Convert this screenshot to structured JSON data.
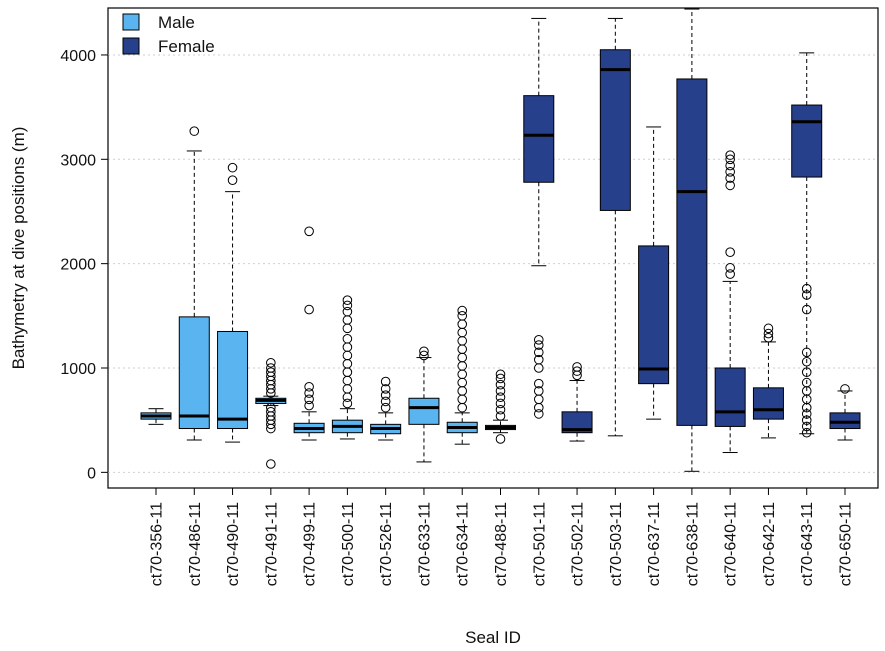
{
  "chart_data": {
    "type": "boxplot",
    "title": "",
    "xlabel": "Seal ID",
    "ylabel": "Bathymetry at dive positions (m)",
    "ylim": [
      -150,
      4450
    ],
    "yticks": [
      0,
      1000,
      2000,
      3000,
      4000
    ],
    "grid": "horizontal dotted",
    "legend_position": "top-left",
    "legend": [
      {
        "name": "Male",
        "color": "#5ab4f0"
      },
      {
        "name": "Female",
        "color": "#27408b"
      }
    ],
    "series": [
      {
        "name": "ct70-356-11",
        "sex": "Male",
        "whisker_low": 460,
        "q1": 510,
        "median": 540,
        "q3": 570,
        "whisker_high": 610,
        "outliers": []
      },
      {
        "name": "ct70-486-11",
        "sex": "Male",
        "whisker_low": 310,
        "q1": 420,
        "median": 540,
        "q3": 1490,
        "whisker_high": 3080,
        "outliers": [
          3270
        ]
      },
      {
        "name": "ct70-490-11",
        "sex": "Male",
        "whisker_low": 290,
        "q1": 420,
        "median": 510,
        "q3": 1350,
        "whisker_high": 2690,
        "outliers": [
          2800,
          2920
        ]
      },
      {
        "name": "ct70-491-11",
        "sex": "Male",
        "whisker_low": 640,
        "q1": 660,
        "median": 690,
        "q3": 710,
        "whisker_high": 730,
        "outliers": [
          80,
          420,
          460,
          500,
          540,
          580,
          620,
          760,
          800,
          840,
          880,
          920,
          960,
          1000,
          1050
        ]
      },
      {
        "name": "ct70-499-11",
        "sex": "Male",
        "whisker_low": 310,
        "q1": 380,
        "median": 420,
        "q3": 470,
        "whisker_high": 580,
        "outliers": [
          640,
          700,
          760,
          820,
          1560,
          2310
        ]
      },
      {
        "name": "ct70-500-11",
        "sex": "Male",
        "whisker_low": 320,
        "q1": 380,
        "median": 440,
        "q3": 500,
        "whisker_high": 610,
        "outliers": [
          660,
          720,
          800,
          880,
          960,
          1040,
          1120,
          1200,
          1280,
          1380,
          1460,
          1540,
          1600,
          1650
        ]
      },
      {
        "name": "ct70-526-11",
        "sex": "Male",
        "whisker_low": 310,
        "q1": 370,
        "median": 420,
        "q3": 460,
        "whisker_high": 570,
        "outliers": [
          620,
          680,
          740,
          800,
          870
        ]
      },
      {
        "name": "ct70-633-11",
        "sex": "Male",
        "whisker_low": 100,
        "q1": 460,
        "median": 620,
        "q3": 710,
        "whisker_high": 1100,
        "outliers": [
          1120,
          1160
        ]
      },
      {
        "name": "ct70-634-11",
        "sex": "Male",
        "whisker_low": 270,
        "q1": 380,
        "median": 430,
        "q3": 480,
        "whisker_high": 570,
        "outliers": [
          620,
          700,
          780,
          860,
          940,
          1020,
          1100,
          1180,
          1260,
          1340,
          1420,
          1500,
          1550
        ]
      },
      {
        "name": "ct70-488-11",
        "sex": "Male",
        "whisker_low": 380,
        "q1": 410,
        "median": 430,
        "q3": 450,
        "whisker_high": 500,
        "outliers": [
          320,
          540,
          600,
          660,
          720,
          780,
          840,
          900,
          940
        ]
      },
      {
        "name": "ct70-501-11",
        "sex": "Female",
        "whisker_low": 1980,
        "q1": 2780,
        "median": 3230,
        "q3": 3610,
        "whisker_high": 4350,
        "outliers": [
          560,
          620,
          700,
          780,
          850,
          1000,
          1080,
          1150,
          1220,
          1270
        ]
      },
      {
        "name": "ct70-502-11",
        "sex": "Female",
        "whisker_low": 300,
        "q1": 380,
        "median": 410,
        "q3": 580,
        "whisker_high": 880,
        "outliers": [
          930,
          970,
          1010
        ]
      },
      {
        "name": "ct70-503-11",
        "sex": "Female",
        "whisker_low": 350,
        "q1": 2510,
        "median": 3860,
        "q3": 4050,
        "whisker_high": 4350,
        "outliers": []
      },
      {
        "name": "ct70-637-11",
        "sex": "Female",
        "whisker_low": 510,
        "q1": 850,
        "median": 990,
        "q3": 2170,
        "whisker_high": 3310,
        "outliers": []
      },
      {
        "name": "ct70-638-11",
        "sex": "Female",
        "whisker_low": 10,
        "q1": 450,
        "median": 2690,
        "q3": 3770,
        "whisker_high": 4440,
        "outliers": []
      },
      {
        "name": "ct70-640-11",
        "sex": "Female",
        "whisker_low": 190,
        "q1": 440,
        "median": 580,
        "q3": 1000,
        "whisker_high": 1830,
        "outliers": [
          1900,
          1960,
          2110,
          2750,
          2820,
          2880,
          2940,
          3000,
          3040
        ]
      },
      {
        "name": "ct70-642-11",
        "sex": "Female",
        "whisker_low": 330,
        "q1": 510,
        "median": 600,
        "q3": 810,
        "whisker_high": 1250,
        "outliers": [
          1290,
          1330,
          1380
        ]
      },
      {
        "name": "ct70-643-11",
        "sex": "Female",
        "whisker_low": 370,
        "q1": 2830,
        "median": 3360,
        "q3": 3520,
        "whisker_high": 4020,
        "outliers": [
          380,
          440,
          500,
          560,
          620,
          700,
          780,
          860,
          960,
          1060,
          1150,
          1560,
          1700,
          1760
        ]
      },
      {
        "name": "ct70-650-11",
        "sex": "Female",
        "whisker_low": 310,
        "q1": 420,
        "median": 480,
        "q3": 570,
        "whisker_high": 780,
        "outliers": [
          800
        ]
      }
    ]
  }
}
